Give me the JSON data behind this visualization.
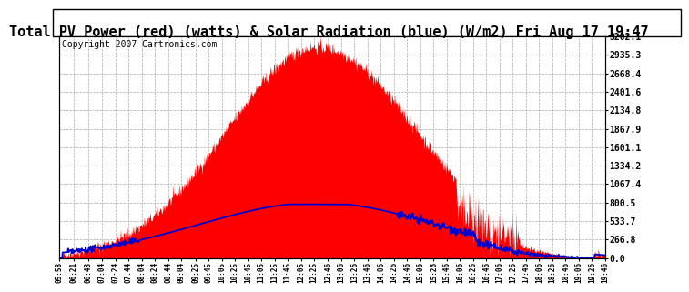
{
  "title": "Total PV Power (red) (watts) & Solar Radiation (blue) (W/m2) Fri Aug 17 19:47",
  "copyright": "Copyright 2007 Cartronics.com",
  "y_right_ticks": [
    0.0,
    266.8,
    533.7,
    800.5,
    1067.4,
    1334.2,
    1601.1,
    1867.9,
    2134.8,
    2401.6,
    2668.4,
    2935.3,
    3202.1
  ],
  "y_max": 3202.1,
  "y_min": 0.0,
  "background_color": "#ffffff",
  "plot_bg_color": "#ffffff",
  "grid_color": "#aaaaaa",
  "fill_color": "#ff0000",
  "line_color": "#0000cc",
  "title_fontsize": 11,
  "copyright_fontsize": 7,
  "x_tick_labels": [
    "05:58",
    "06:21",
    "06:43",
    "07:04",
    "07:24",
    "07:44",
    "08:04",
    "08:24",
    "08:44",
    "09:04",
    "09:25",
    "09:45",
    "10:05",
    "10:25",
    "10:45",
    "11:05",
    "11:25",
    "11:45",
    "12:05",
    "12:25",
    "12:46",
    "13:06",
    "13:26",
    "13:46",
    "14:06",
    "14:26",
    "14:46",
    "15:06",
    "15:26",
    "15:46",
    "16:06",
    "16:26",
    "16:46",
    "17:06",
    "17:26",
    "17:46",
    "18:06",
    "18:26",
    "18:46",
    "19:06",
    "19:26",
    "19:46"
  ]
}
